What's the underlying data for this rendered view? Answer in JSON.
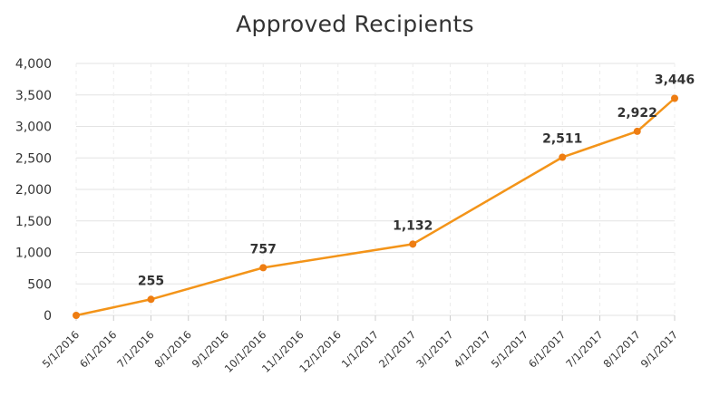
{
  "chart_data": {
    "type": "line",
    "title": "Approved Recipients",
    "xlabel": "",
    "ylabel": "",
    "ylim": [
      0,
      4000
    ],
    "yticks": [
      "0",
      "500",
      "1,000",
      "1,500",
      "2,000",
      "2,500",
      "3,000",
      "3,500",
      "4,000"
    ],
    "x_tick_labels": [
      "5/1/2016",
      "6/1/2016",
      "7/1/2016",
      "8/1/2016",
      "9/1/2016",
      "10/1/2016",
      "11/1/2016",
      "12/1/2016",
      "1/1/2017",
      "2/1/2017",
      "3/1/2017",
      "4/1/2017",
      "5/1/2017",
      "6/1/2017",
      "7/1/2017",
      "8/1/2017",
      "9/1/2017"
    ],
    "grid": true,
    "legend": "none",
    "line_color": "#F39419",
    "series": [
      {
        "points": [
          {
            "x": "5/1/2016",
            "y": 0,
            "label": ""
          },
          {
            "x": "7/1/2016",
            "y": 255,
            "label": "255"
          },
          {
            "x": "10/1/2016",
            "y": 757,
            "label": "757"
          },
          {
            "x": "2/1/2017",
            "y": 1132,
            "label": "1,132"
          },
          {
            "x": "6/1/2017",
            "y": 2511,
            "label": "2,511"
          },
          {
            "x": "8/1/2017",
            "y": 2922,
            "label": "2,922"
          },
          {
            "x": "9/1/2017",
            "y": 3446,
            "label": "3,446"
          }
        ]
      }
    ]
  }
}
